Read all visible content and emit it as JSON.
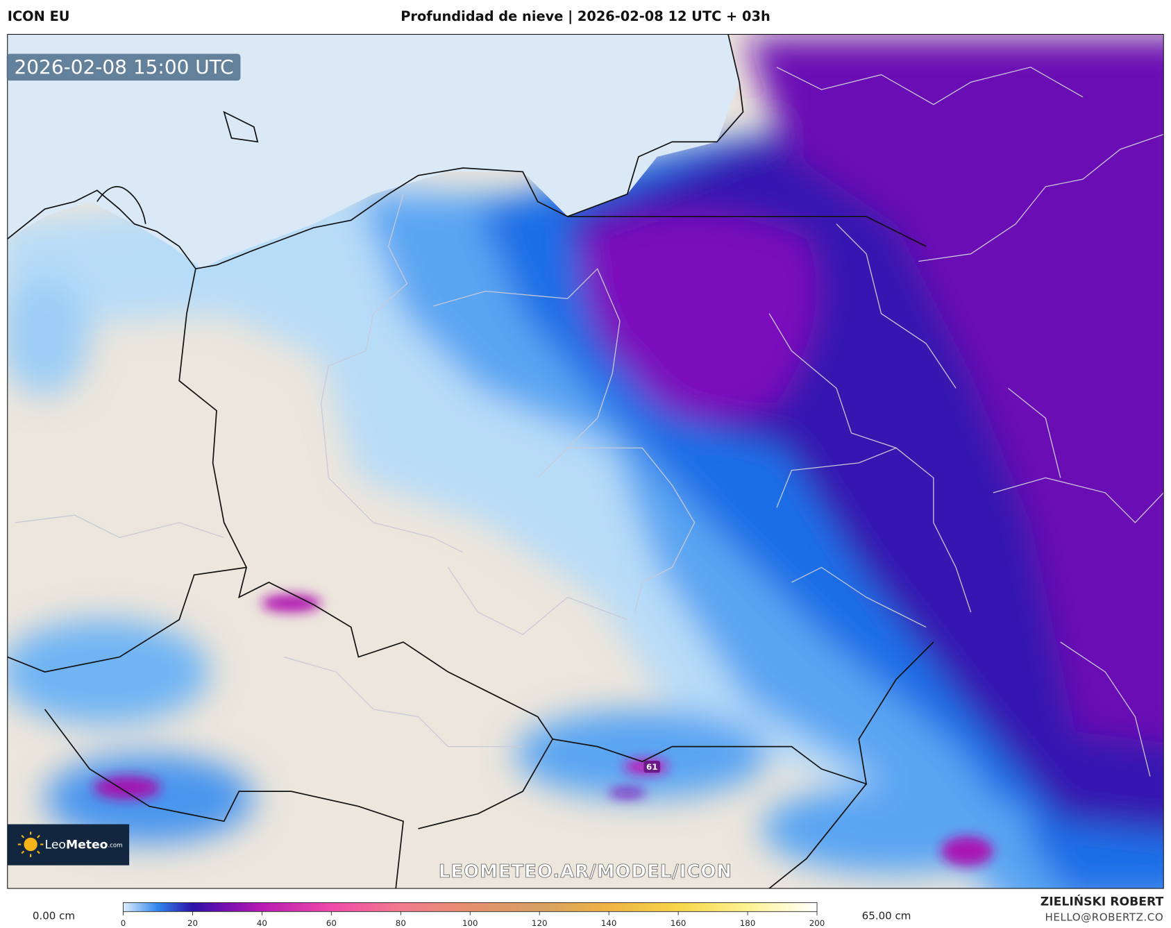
{
  "header": {
    "model": "ICON EU",
    "title": "Profundidad de nieve | 2026-02-08 12 UTC + 03h"
  },
  "map": {
    "timestamp": "2026-02-08 15:00 UTC",
    "watermark": "LEOMETEO.AR/MODEL/ICON",
    "point_label": "61",
    "logo": {
      "brand_light": "Leo",
      "brand_bold": "Meteo",
      "suffix": ".com"
    }
  },
  "colorbar": {
    "min_label": "0.00 cm",
    "max_label": "65.00 cm",
    "ticks": [
      0,
      20,
      40,
      60,
      80,
      100,
      120,
      140,
      160,
      180,
      200
    ]
  },
  "footer": {
    "author": "ZIELIŃSKI ROBERT",
    "email": "HELLO@ROBERTZ.CO"
  }
}
